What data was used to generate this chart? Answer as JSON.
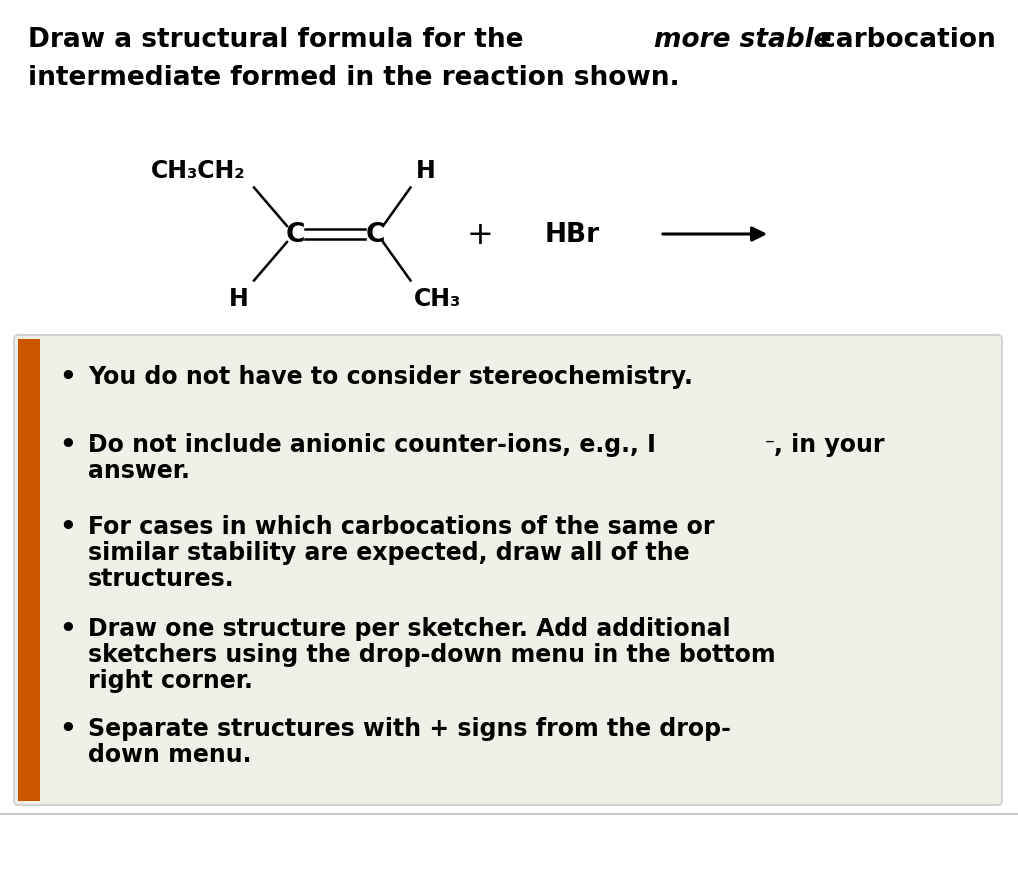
{
  "bg_color": "#ffffff",
  "box_bg": "#f0efe8",
  "box_border": "#cccccc",
  "sidebar_color": "#cc5500",
  "font_size_title": 19,
  "font_size_bullet": 17,
  "font_size_chem": 17,
  "title_parts": [
    {
      "text": "Draw a structural formula for the ",
      "style": "normal"
    },
    {
      "text": "more stable",
      "style": "italic"
    },
    {
      "text": " carbocation",
      "style": "normal"
    }
  ],
  "title_line2": "intermediate formed in the reaction shown.",
  "bullet_points": [
    [
      "You do not have to consider stereochemistry."
    ],
    [
      "Do not include anionic counter-ions, e.g., I",
      "answer."
    ],
    [
      "For cases in which carbocations of the same or",
      "similar stability are expected, draw all of the",
      "structures."
    ],
    [
      "Draw one structure per sketcher. Add additional",
      "sketchers using the drop-down menu in the bottom",
      "right corner."
    ],
    [
      "Separate structures with + signs from the drop-",
      "down menu."
    ]
  ]
}
